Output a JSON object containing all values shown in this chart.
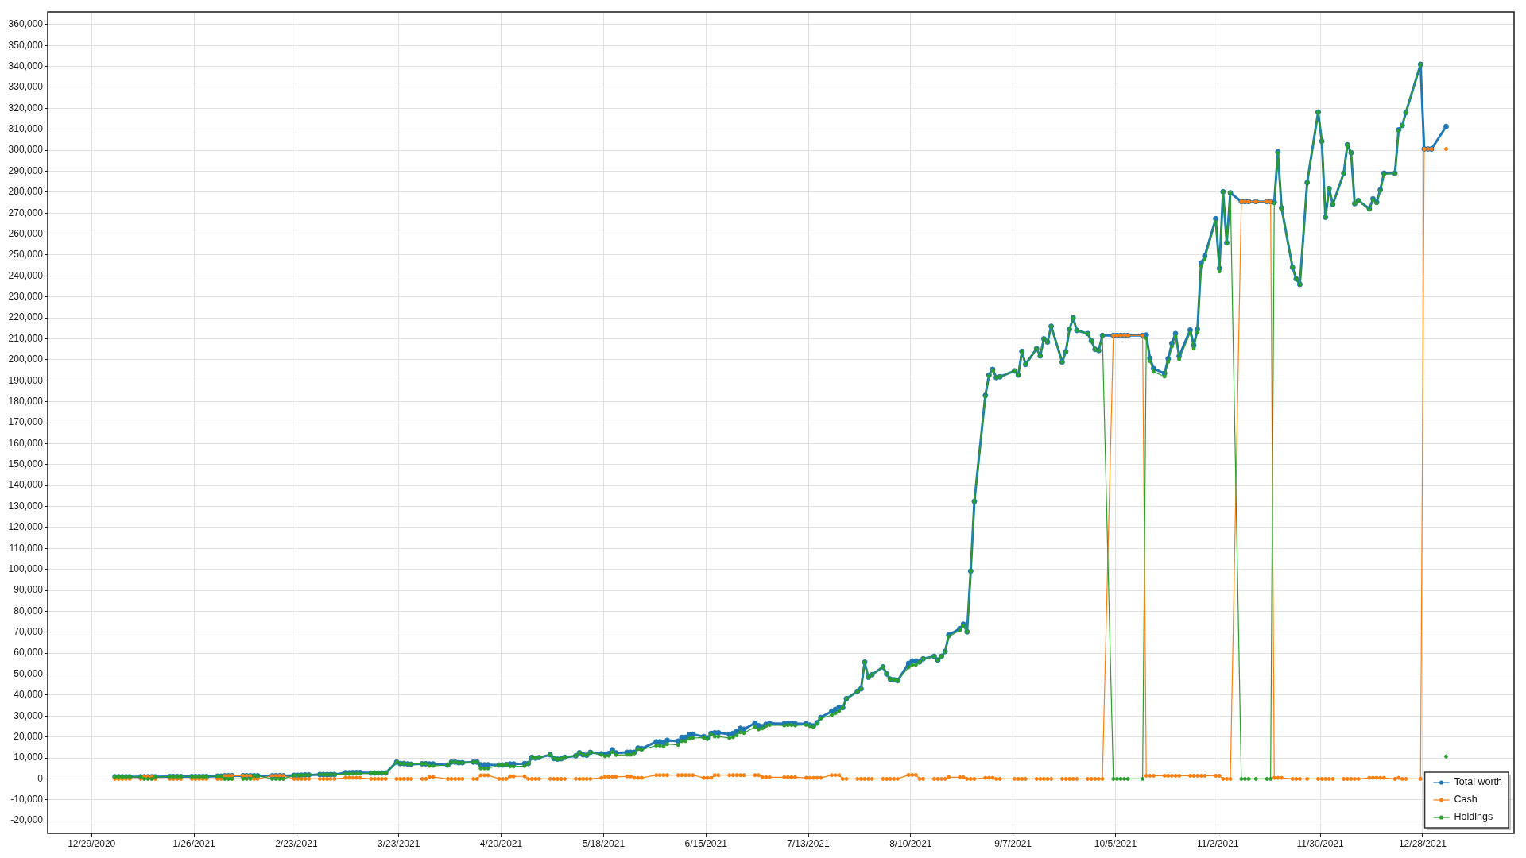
{
  "chart_data": {
    "type": "line",
    "x": [
      "2021-01-04T10:00",
      "2021-01-05T10:00",
      "2021-01-06T10:00",
      "2021-01-07T10:00",
      "2021-01-08T10:00",
      "2021-01-11T10:00",
      "2021-01-12T10:00",
      "2021-01-13T10:00",
      "2021-01-14T10:00",
      "2021-01-15T10:00",
      "2021-01-19T10:00",
      "2021-01-20T10:00",
      "2021-01-21T10:00",
      "2021-01-22T10:00",
      "2021-01-25T10:00",
      "2021-01-26T10:00",
      "2021-01-27T10:00",
      "2021-01-28T10:00",
      "2021-01-29T10:00",
      "2021-02-01T10:00",
      "2021-02-02T10:00",
      "2021-02-03T10:00",
      "2021-02-04T10:00",
      "2021-02-05T10:00",
      "2021-02-08T10:00",
      "2021-02-09T10:00",
      "2021-02-10T10:00",
      "2021-02-11T10:00",
      "2021-02-12T10:00",
      "2021-02-16T10:00",
      "2021-02-17T10:00",
      "2021-02-18T10:00",
      "2021-02-19T10:00",
      "2021-02-22T10:00",
      "2021-02-23T10:00",
      "2021-02-24T10:00",
      "2021-02-25T10:00",
      "2021-02-26T10:00",
      "2021-03-01T10:00",
      "2021-03-02T10:00",
      "2021-03-03T10:00",
      "2021-03-04T10:00",
      "2021-03-05T10:00",
      "2021-03-08T10:00",
      "2021-03-09T10:00",
      "2021-03-10T10:00",
      "2021-03-11T10:00",
      "2021-03-12T10:00",
      "2021-03-15T10:00",
      "2021-03-16T10:00",
      "2021-03-17T10:00",
      "2021-03-18T10:00",
      "2021-03-19T10:00",
      "2021-03-22T10:00",
      "2021-03-23T10:00",
      "2021-03-24T10:00",
      "2021-03-25T10:00",
      "2021-03-26T10:00",
      "2021-03-29T10:00",
      "2021-03-30T10:00",
      "2021-03-31T10:00",
      "2021-04-01T10:00",
      "2021-04-05T10:00",
      "2021-04-06T10:00",
      "2021-04-07T10:00",
      "2021-04-08T10:00",
      "2021-04-09T10:00",
      "2021-04-12T10:00",
      "2021-04-13T10:00",
      "2021-04-14T10:00",
      "2021-04-15T10:00",
      "2021-04-16T10:00",
      "2021-04-19T10:00",
      "2021-04-20T10:00",
      "2021-04-21T10:00",
      "2021-04-22T10:00",
      "2021-04-23T10:00",
      "2021-04-26T10:00",
      "2021-04-27T10:00",
      "2021-04-28T10:00",
      "2021-04-29T10:00",
      "2021-04-30T10:00",
      "2021-05-03T10:00",
      "2021-05-04T10:00",
      "2021-05-05T10:00",
      "2021-05-06T10:00",
      "2021-05-07T10:00",
      "2021-05-10T10:00",
      "2021-05-11T10:00",
      "2021-05-12T10:00",
      "2021-05-13T10:00",
      "2021-05-14T10:00",
      "2021-05-17T10:00",
      "2021-05-18T10:00",
      "2021-05-19T10:00",
      "2021-05-20T10:00",
      "2021-05-21T10:00",
      "2021-05-24T10:00",
      "2021-05-25T10:00",
      "2021-05-26T10:00",
      "2021-05-27T10:00",
      "2021-05-28T10:00",
      "2021-06-01T10:00",
      "2021-06-02T10:00",
      "2021-06-03T10:00",
      "2021-06-04T10:00",
      "2021-06-07T10:00",
      "2021-06-08T10:00",
      "2021-06-09T10:00",
      "2021-06-10T10:00",
      "2021-06-11T10:00",
      "2021-06-14T10:00",
      "2021-06-15T10:00",
      "2021-06-16T10:00",
      "2021-06-17T10:00",
      "2021-06-18T10:00",
      "2021-06-21T10:00",
      "2021-06-22T10:00",
      "2021-06-23T10:00",
      "2021-06-24T10:00",
      "2021-06-25T10:00",
      "2021-06-28T10:00",
      "2021-06-29T10:00",
      "2021-06-30T10:00",
      "2021-07-01T10:00",
      "2021-07-02T10:00",
      "2021-07-06T10:00",
      "2021-07-07T10:00",
      "2021-07-08T10:00",
      "2021-07-09T10:00",
      "2021-07-12T10:00",
      "2021-07-13T10:00",
      "2021-07-14T10:00",
      "2021-07-15T10:00",
      "2021-07-16T10:00",
      "2021-07-19T10:00",
      "2021-07-20T10:00",
      "2021-07-21T10:00",
      "2021-07-22T10:00",
      "2021-07-23T10:00",
      "2021-07-26T10:00",
      "2021-07-27T10:00",
      "2021-07-28T10:00",
      "2021-07-29T10:00",
      "2021-07-30T10:00",
      "2021-08-02T10:00",
      "2021-08-03T10:00",
      "2021-08-04T10:00",
      "2021-08-05T10:00",
      "2021-08-06T10:00",
      "2021-08-09T10:00",
      "2021-08-10T10:00",
      "2021-08-11T10:00",
      "2021-08-12T10:00",
      "2021-08-13T10:00",
      "2021-08-16T10:00",
      "2021-08-17T10:00",
      "2021-08-18T10:00",
      "2021-08-19T10:00",
      "2021-08-20T10:00",
      "2021-08-23T10:00",
      "2021-08-24T10:00",
      "2021-08-25T10:00",
      "2021-08-26T10:00",
      "2021-08-27T10:00",
      "2021-08-30T10:00",
      "2021-08-31T10:00",
      "2021-09-01T10:00",
      "2021-09-02T10:00",
      "2021-09-03T10:00",
      "2021-09-07T10:00",
      "2021-09-08T10:00",
      "2021-09-09T10:00",
      "2021-09-10T10:00",
      "2021-09-13T10:00",
      "2021-09-14T10:00",
      "2021-09-15T10:00",
      "2021-09-16T10:00",
      "2021-09-17T10:00",
      "2021-09-20T10:00",
      "2021-09-21T10:00",
      "2021-09-22T10:00",
      "2021-09-23T10:00",
      "2021-09-24T10:00",
      "2021-09-27T10:00",
      "2021-09-28T10:00",
      "2021-09-29T10:00",
      "2021-09-30T10:00",
      "2021-10-01T10:00",
      "2021-10-04T10:00",
      "2021-10-05T10:00",
      "2021-10-06T10:00",
      "2021-10-07T10:00",
      "2021-10-08T10:00",
      "2021-10-12T10:00",
      "2021-10-13T10:00",
      "2021-10-14T10:00",
      "2021-10-15T10:00",
      "2021-10-18T10:00",
      "2021-10-19T10:00",
      "2021-10-20T10:00",
      "2021-10-21T10:00",
      "2021-10-22T10:00",
      "2021-10-25T10:00",
      "2021-10-26T10:00",
      "2021-10-27T10:00",
      "2021-10-28T10:00",
      "2021-10-29T10:00",
      "2021-11-01T10:00",
      "2021-11-02T10:00",
      "2021-11-03T10:00",
      "2021-11-04T10:00",
      "2021-11-05T10:00",
      "2021-11-08T10:00",
      "2021-11-09T10:00",
      "2021-11-10T10:00",
      "2021-11-12T10:00",
      "2021-11-15T10:00",
      "2021-11-16T10:00",
      "2021-11-17T10:00",
      "2021-11-18T10:00",
      "2021-11-19T10:00",
      "2021-11-22T10:00",
      "2021-11-23T10:00",
      "2021-11-24T10:00",
      "2021-11-26T10:00",
      "2021-11-29T10:00",
      "2021-11-30T10:00",
      "2021-12-01T10:00",
      "2021-12-02T10:00",
      "2021-12-03T10:00",
      "2021-12-06T10:00",
      "2021-12-07T10:00",
      "2021-12-08T10:00",
      "2021-12-09T10:00",
      "2021-12-10T10:00",
      "2021-12-13T10:00",
      "2021-12-14T10:00",
      "2021-12-15T10:00",
      "2021-12-16T10:00",
      "2021-12-17T10:00",
      "2021-12-20T10:00",
      "2021-12-21T10:00",
      "2021-12-22T10:00",
      "2021-12-23T10:00",
      "2021-12-27T10:00",
      "2021-12-28T10:00",
      "2021-12-29T10:00",
      "2021-12-30T10:00",
      "2022-01-03T10:00"
    ],
    "series": [
      {
        "name": "Total worth",
        "color": "#1f77b4",
        "values": [
          1000,
          1000,
          1000,
          1000,
          1000,
          1000,
          1000,
          1000,
          1000,
          1000,
          1100,
          1100,
          1100,
          1100,
          1100,
          1100,
          1100,
          1100,
          1100,
          1300,
          1300,
          1500,
          1500,
          1500,
          1500,
          1500,
          1500,
          1500,
          1500,
          1500,
          1500,
          1500,
          1500,
          1700,
          1700,
          1800,
          1900,
          1900,
          2100,
          2100,
          2100,
          2100,
          2100,
          2900,
          2900,
          3000,
          3000,
          3000,
          2800,
          2800,
          2800,
          2800,
          2800,
          8000,
          7300,
          7300,
          7100,
          7000,
          7200,
          7200,
          7100,
          7100,
          6600,
          8000,
          8000,
          7700,
          7700,
          8000,
          8000,
          6700,
          6700,
          6700,
          6600,
          6600,
          6800,
          7100,
          7100,
          7300,
          7300,
          10300,
          9900,
          10200,
          11500,
          9700,
          9400,
          9600,
          10300,
          11000,
          12500,
          11500,
          11300,
          12700,
          12000,
          11800,
          12100,
          13900,
          12400,
          12700,
          12700,
          12700,
          14700,
          14400,
          17700,
          17700,
          17200,
          18400,
          18000,
          19800,
          19800,
          21000,
          21300,
          20200,
          19500,
          21700,
          22000,
          22000,
          21300,
          21700,
          22600,
          24100,
          23700,
          26600,
          25400,
          24900,
          26000,
          26500,
          26300,
          26500,
          26500,
          26300,
          26300,
          25700,
          25300,
          26800,
          29300,
          32300,
          33100,
          34100,
          34000,
          38300,
          41800,
          43000,
          55700,
          48500,
          49700,
          53400,
          50100,
          47600,
          47300,
          46900,
          55100,
          56300,
          56300,
          55800,
          57300,
          58500,
          56700,
          58500,
          60800,
          68700,
          71700,
          73800,
          70200,
          99200,
          132400,
          183000,
          192700,
          195400,
          191500,
          191900,
          194700,
          192700,
          204000,
          197800,
          205300,
          201800,
          210000,
          208500,
          216000,
          198900,
          203900,
          214500,
          220000,
          214000,
          212500,
          209000,
          205000,
          204400,
          211600,
          211600,
          211600,
          211600,
          211600,
          211600,
          211600,
          211800,
          200800,
          195800,
          193500,
          200500,
          207800,
          212500,
          201700,
          214200,
          206900,
          214500,
          246200,
          249500,
          267300,
          243600,
          280200,
          255800,
          279700,
          275500,
          275500,
          275500,
          275500,
          275500,
          275500,
          275200,
          299200,
          272500,
          244100,
          238600,
          236000,
          284600,
          318200,
          304300,
          268000,
          281700,
          274200,
          289000,
          302600,
          298800,
          274500,
          276000,
          272100,
          276800,
          275200,
          281100,
          289000,
          289000,
          309700,
          311800,
          318000,
          341000,
          300600,
          300600,
          300600,
          311300
        ]
      },
      {
        "name": "Cash",
        "color": "#ff7f0e",
        "values": [
          0,
          0,
          0,
          0,
          0,
          0,
          1000,
          1000,
          1000,
          0,
          0,
          0,
          0,
          0,
          0,
          0,
          0,
          0,
          0,
          0,
          0,
          1500,
          1500,
          1500,
          1500,
          1500,
          1500,
          0,
          0,
          1500,
          1500,
          1500,
          1500,
          0,
          0,
          0,
          0,
          0,
          0,
          0,
          0,
          0,
          0,
          500,
          500,
          500,
          500,
          500,
          0,
          0,
          0,
          0,
          0,
          0,
          0,
          0,
          0,
          0,
          0,
          0,
          900,
          900,
          0,
          0,
          0,
          0,
          0,
          0,
          0,
          1700,
          1700,
          1700,
          0,
          0,
          0,
          1200,
          1200,
          1200,
          0,
          0,
          0,
          0,
          0,
          0,
          0,
          0,
          0,
          0,
          0,
          0,
          0,
          0,
          500,
          1000,
          1000,
          1000,
          1000,
          1200,
          1200,
          500,
          500,
          500,
          1800,
          1800,
          1800,
          1800,
          1800,
          1800,
          1800,
          1800,
          1800,
          500,
          500,
          500,
          1800,
          1800,
          1800,
          1800,
          1800,
          1800,
          1800,
          1800,
          1800,
          800,
          800,
          800,
          800,
          800,
          800,
          800,
          500,
          500,
          500,
          500,
          500,
          1800,
          1800,
          1800,
          0,
          0,
          0,
          0,
          0,
          0,
          0,
          0,
          0,
          0,
          0,
          0,
          1900,
          1900,
          1900,
          0,
          0,
          0,
          0,
          0,
          0,
          800,
          800,
          800,
          0,
          0,
          0,
          500,
          500,
          500,
          0,
          0,
          0,
          0,
          0,
          0,
          0,
          0,
          0,
          0,
          0,
          0,
          0,
          0,
          0,
          0,
          0,
          0,
          0,
          0,
          0,
          211600,
          211600,
          211600,
          211600,
          211600,
          211600,
          1500,
          1500,
          1500,
          1500,
          1500,
          1500,
          1500,
          1500,
          1500,
          1500,
          1500,
          1500,
          1500,
          1500,
          1500,
          0,
          0,
          0,
          275500,
          275500,
          275500,
          275500,
          275500,
          275500,
          500,
          500,
          500,
          0,
          0,
          0,
          0,
          0,
          0,
          0,
          0,
          0,
          0,
          0,
          0,
          0,
          0,
          500,
          500,
          500,
          500,
          500,
          0,
          500,
          0,
          0,
          0,
          300600,
          300600,
          300600,
          300600
        ]
      },
      {
        "name": "Holdings",
        "color": "#2ca02c",
        "values": [
          1000,
          1000,
          1000,
          1000,
          1000,
          1000,
          0,
          0,
          0,
          1000,
          1100,
          1100,
          1100,
          1100,
          1100,
          1100,
          1100,
          1100,
          1100,
          1300,
          1300,
          0,
          0,
          0,
          0,
          0,
          0,
          1500,
          1500,
          0,
          0,
          0,
          0,
          1700,
          1700,
          1800,
          1900,
          1900,
          2100,
          2100,
          2100,
          2100,
          2100,
          2400,
          2400,
          2500,
          2500,
          2500,
          2800,
          2800,
          2800,
          2800,
          2800,
          8000,
          7300,
          7300,
          7100,
          7000,
          7200,
          7200,
          6200,
          6200,
          6600,
          8000,
          8000,
          7700,
          7700,
          8000,
          8000,
          5000,
          5000,
          5000,
          6600,
          6600,
          6800,
          5900,
          5900,
          6100,
          7300,
          10300,
          9900,
          10200,
          11500,
          9700,
          9400,
          9600,
          10300,
          11000,
          12500,
          11500,
          11300,
          12700,
          11500,
          10800,
          11100,
          12900,
          11400,
          11500,
          11500,
          12200,
          14200,
          13900,
          15900,
          15900,
          15400,
          16600,
          16200,
          18000,
          18000,
          19200,
          19500,
          19700,
          19000,
          21200,
          20200,
          20200,
          19500,
          19900,
          20800,
          22300,
          21900,
          24800,
          23600,
          24100,
          25200,
          25700,
          25500,
          25700,
          25700,
          25500,
          25800,
          25200,
          24800,
          26300,
          28800,
          30500,
          31300,
          32300,
          34000,
          38300,
          41800,
          43000,
          55700,
          48500,
          49700,
          53400,
          50100,
          47600,
          47300,
          46900,
          53200,
          54400,
          54400,
          55800,
          57300,
          58500,
          56700,
          58500,
          60800,
          67900,
          70900,
          73000,
          70200,
          99200,
          132400,
          182500,
          192200,
          194900,
          191500,
          191900,
          194700,
          192700,
          204000,
          197800,
          205300,
          201800,
          210000,
          208500,
          216000,
          198900,
          203900,
          214500,
          220000,
          214000,
          212500,
          209000,
          205000,
          204400,
          211600,
          0,
          0,
          0,
          0,
          0,
          0,
          210300,
          199300,
          194300,
          192000,
          199000,
          206300,
          211000,
          200200,
          212700,
          205400,
          213000,
          244700,
          248000,
          265800,
          242100,
          280200,
          255800,
          279700,
          0,
          0,
          0,
          0,
          0,
          0,
          274700,
          298700,
          272000,
          244100,
          238600,
          236000,
          284600,
          318200,
          304300,
          268000,
          281700,
          274200,
          289000,
          302600,
          298800,
          274500,
          276000,
          271600,
          276300,
          274700,
          280600,
          288500,
          289000,
          309200,
          311800,
          318000,
          341000,
          null,
          null,
          null,
          10700
        ]
      }
    ],
    "xlim": [
      "2020-12-17",
      "2022-01-22"
    ],
    "xticks": [
      {
        "value": "2020-12-29",
        "label": "12/29/2020"
      },
      {
        "value": "2021-01-26",
        "label": "1/26/2021"
      },
      {
        "value": "2021-02-23",
        "label": "2/23/2021"
      },
      {
        "value": "2021-03-23",
        "label": "3/23/2021"
      },
      {
        "value": "2021-04-20",
        "label": "4/20/2021"
      },
      {
        "value": "2021-05-18",
        "label": "5/18/2021"
      },
      {
        "value": "2021-06-15",
        "label": "6/15/2021"
      },
      {
        "value": "2021-07-13",
        "label": "7/13/2021"
      },
      {
        "value": "2021-08-10",
        "label": "8/10/2021"
      },
      {
        "value": "2021-09-07",
        "label": "9/7/2021"
      },
      {
        "value": "2021-10-05",
        "label": "10/5/2021"
      },
      {
        "value": "2021-11-02",
        "label": "11/2/2021"
      },
      {
        "value": "2021-11-30",
        "label": "11/30/2021"
      },
      {
        "value": "2021-12-28",
        "label": "12/28/2021"
      }
    ],
    "ylim": [
      -26000,
      366000
    ],
    "yticks": [
      {
        "value": -20000,
        "label": "-20,000"
      },
      {
        "value": -10000,
        "label": "-10,000"
      },
      0,
      {
        "value": 10000,
        "label": "10,000"
      },
      {
        "value": 20000,
        "label": "20,000"
      },
      {
        "value": 30000,
        "label": "30,000"
      },
      {
        "value": 40000,
        "label": "40,000"
      },
      {
        "value": 50000,
        "label": "50,000"
      },
      {
        "value": 60000,
        "label": "60,000"
      },
      {
        "value": 70000,
        "label": "70,000"
      },
      {
        "value": 80000,
        "label": "80,000"
      },
      {
        "value": 90000,
        "label": "90,000"
      },
      {
        "value": 100000,
        "label": "100,000"
      },
      {
        "value": 110000,
        "label": "110,000"
      },
      {
        "value": 120000,
        "label": "120,000"
      },
      {
        "value": 130000,
        "label": "130,000"
      },
      {
        "value": 140000,
        "label": "140,000"
      },
      {
        "value": 150000,
        "label": "150,000"
      },
      {
        "value": 160000,
        "label": "160,000"
      },
      {
        "value": 170000,
        "label": "170,000"
      },
      {
        "value": 180000,
        "label": "180,000"
      },
      {
        "value": 190000,
        "label": "190,000"
      },
      {
        "value": 200000,
        "label": "200,000"
      },
      {
        "value": 210000,
        "label": "210,000"
      },
      {
        "value": 220000,
        "label": "220,000"
      },
      {
        "value": 230000,
        "label": "230,000"
      },
      {
        "value": 240000,
        "label": "240,000"
      },
      {
        "value": 250000,
        "label": "250,000"
      },
      {
        "value": 260000,
        "label": "260,000"
      },
      {
        "value": 270000,
        "label": "270,000"
      },
      {
        "value": 280000,
        "label": "280,000"
      },
      {
        "value": 290000,
        "label": "290,000"
      },
      {
        "value": 300000,
        "label": "300,000"
      },
      {
        "value": 310000,
        "label": "310,000"
      },
      {
        "value": 320000,
        "label": "320,000"
      },
      {
        "value": 330000,
        "label": "330,000"
      },
      {
        "value": 340000,
        "label": "340,000"
      },
      {
        "value": 350000,
        "label": "350,000"
      },
      {
        "value": 360000,
        "label": "360,000"
      }
    ],
    "grid": true,
    "legend": "bottom right",
    "marker": "circle"
  }
}
